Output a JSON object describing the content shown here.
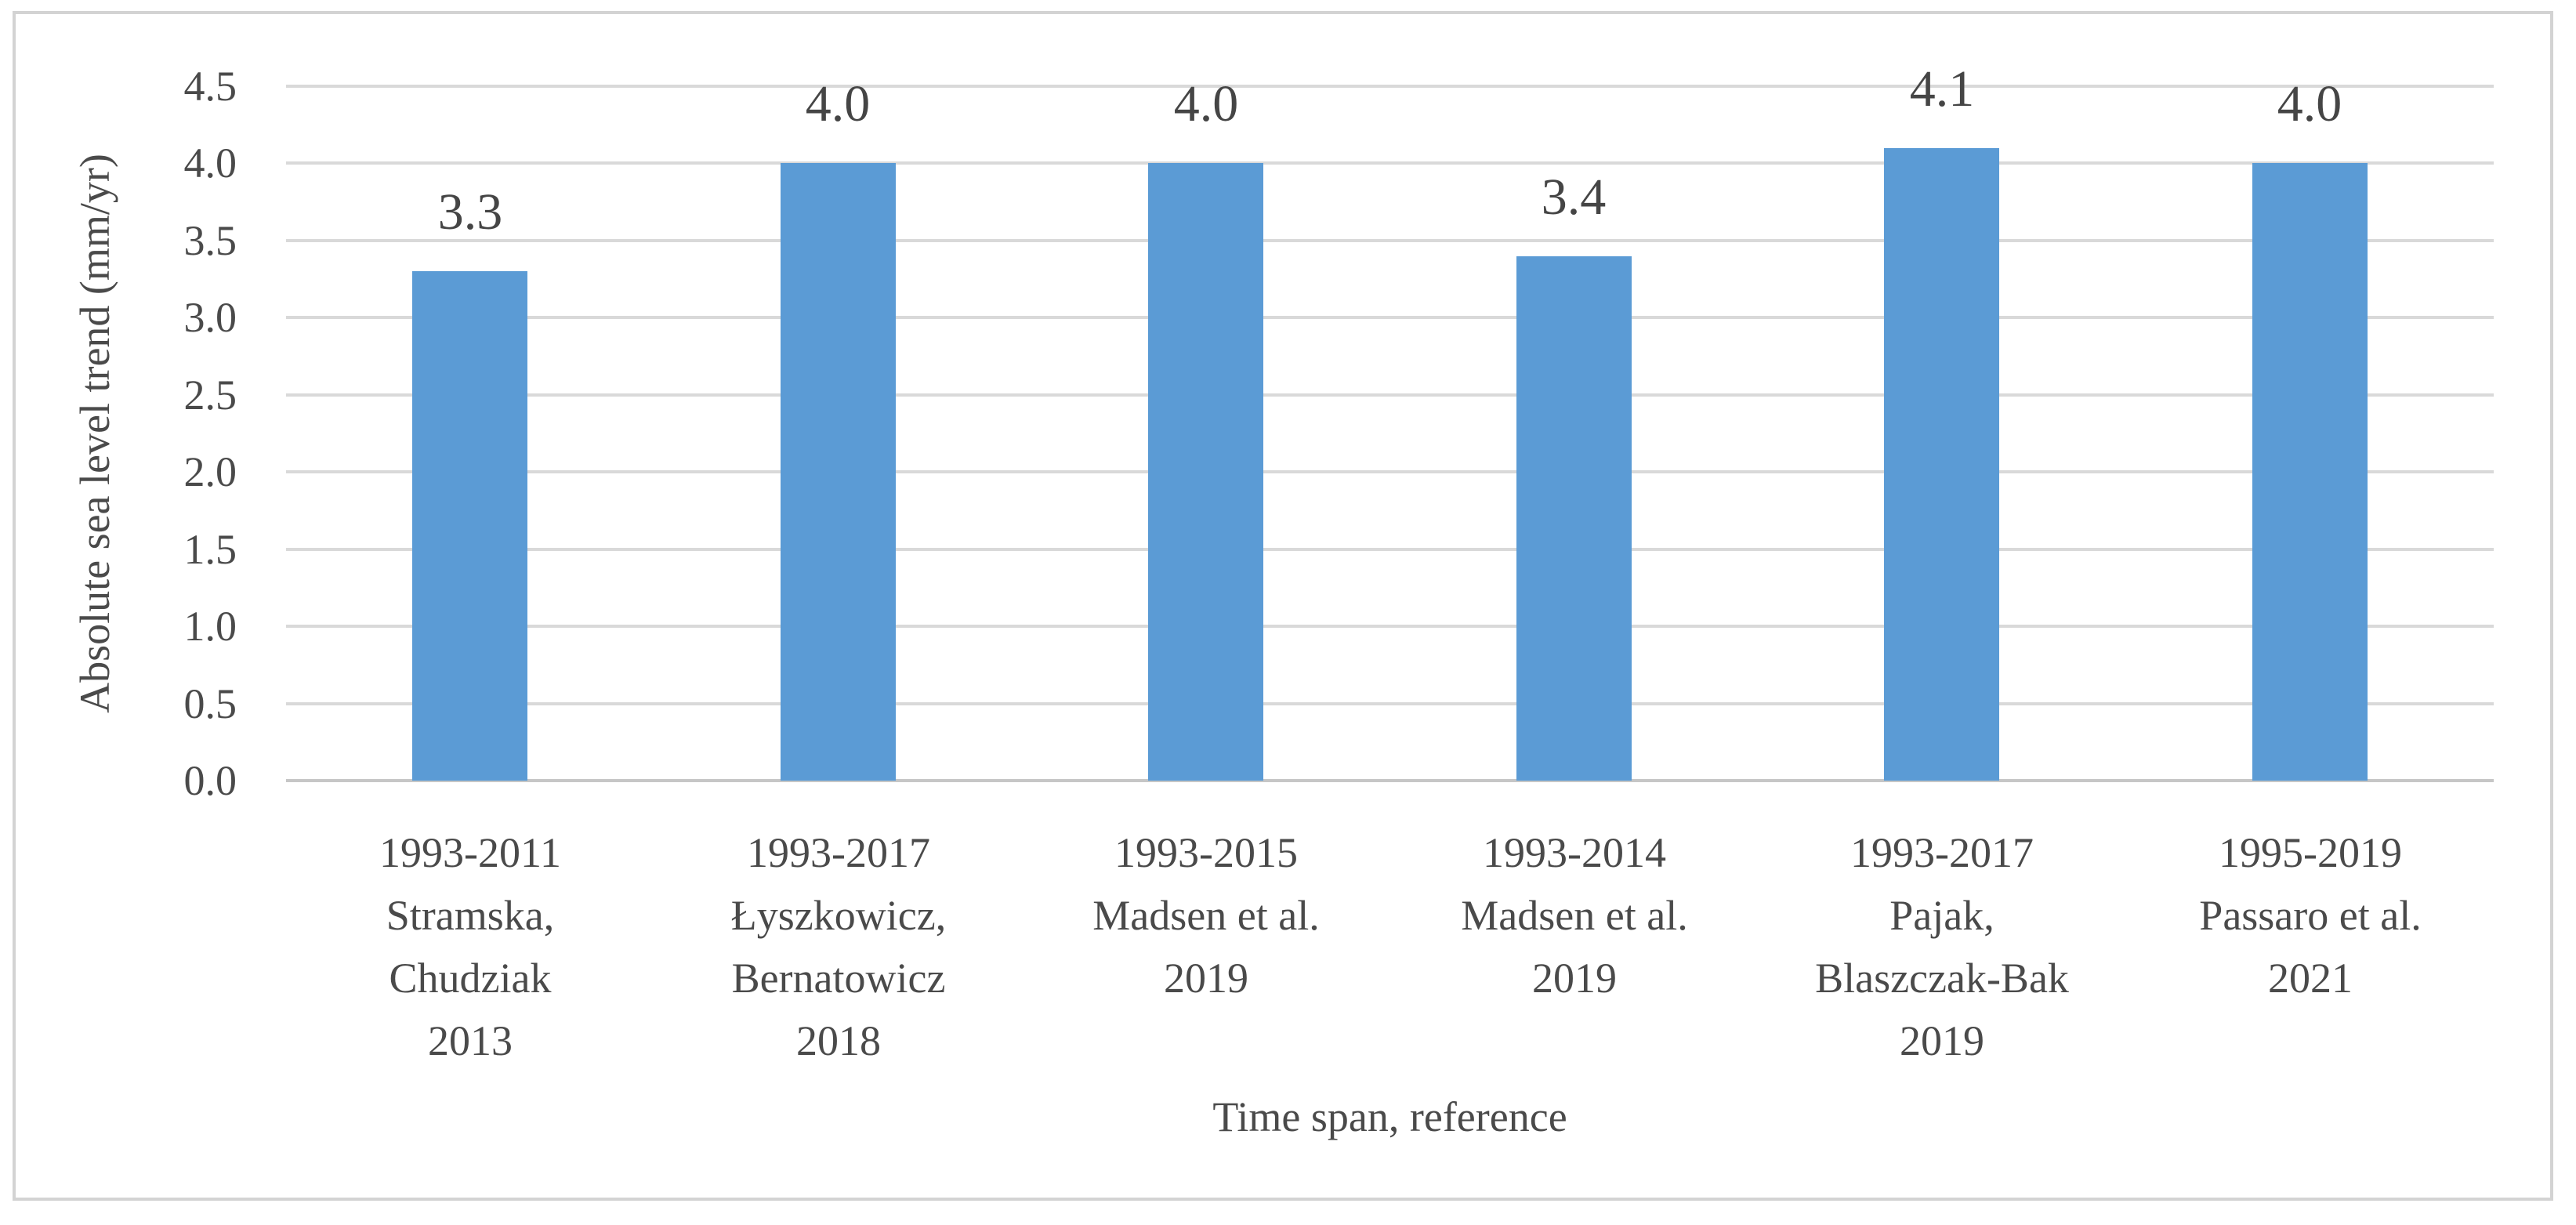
{
  "chart_data": {
    "type": "bar",
    "title": "",
    "xlabel": "Time span, reference",
    "ylabel": "Absolute sea level trend (mm/yr)",
    "ylim": [
      0.0,
      4.5
    ],
    "ytick_step": 0.5,
    "ytick_labels": [
      "4.5",
      "4.0",
      "3.5",
      "3.0",
      "2.5",
      "2.0",
      "1.5",
      "1.0",
      "0.5",
      "0.0"
    ],
    "grid": true,
    "legend": false,
    "categories": [
      "1993-2011 Stramska, Chudziak 2013",
      "1993-2017 Łyszkowicz, Bernatowicz 2018",
      "1993-2015 Madsen et al. 2019",
      "1993-2014 Madsen et al. 2019",
      "1993-2017 Pajak, Blaszczak-Bak 2019",
      "1995-2019 Passaro et al. 2021"
    ],
    "category_lines": [
      [
        "1993-2011",
        "Stramska,",
        "Chudziak",
        "2013"
      ],
      [
        "1993-2017",
        "Łyszkowicz,",
        "Bernatowicz",
        "2018"
      ],
      [
        "1993-2015",
        "Madsen et al.",
        "2019"
      ],
      [
        "1993-2014",
        "Madsen et al.",
        "2019"
      ],
      [
        "1993-2017",
        "Pajak,",
        "Blaszczak-Bak",
        "2019"
      ],
      [
        "1995-2019",
        "Passaro et al.",
        "2021"
      ]
    ],
    "values": [
      3.3,
      4.0,
      4.0,
      3.4,
      4.1,
      4.0
    ],
    "data_labels": [
      "3.3",
      "4.0",
      "4.0",
      "3.4",
      "4.1",
      "4.0"
    ],
    "colors": {
      "bar": "#5B9BD5",
      "gridline": "#D9D9D9",
      "axis_line": "#C6C6C6",
      "text": "#4A4A4A",
      "border": "#D3D3D3"
    }
  }
}
